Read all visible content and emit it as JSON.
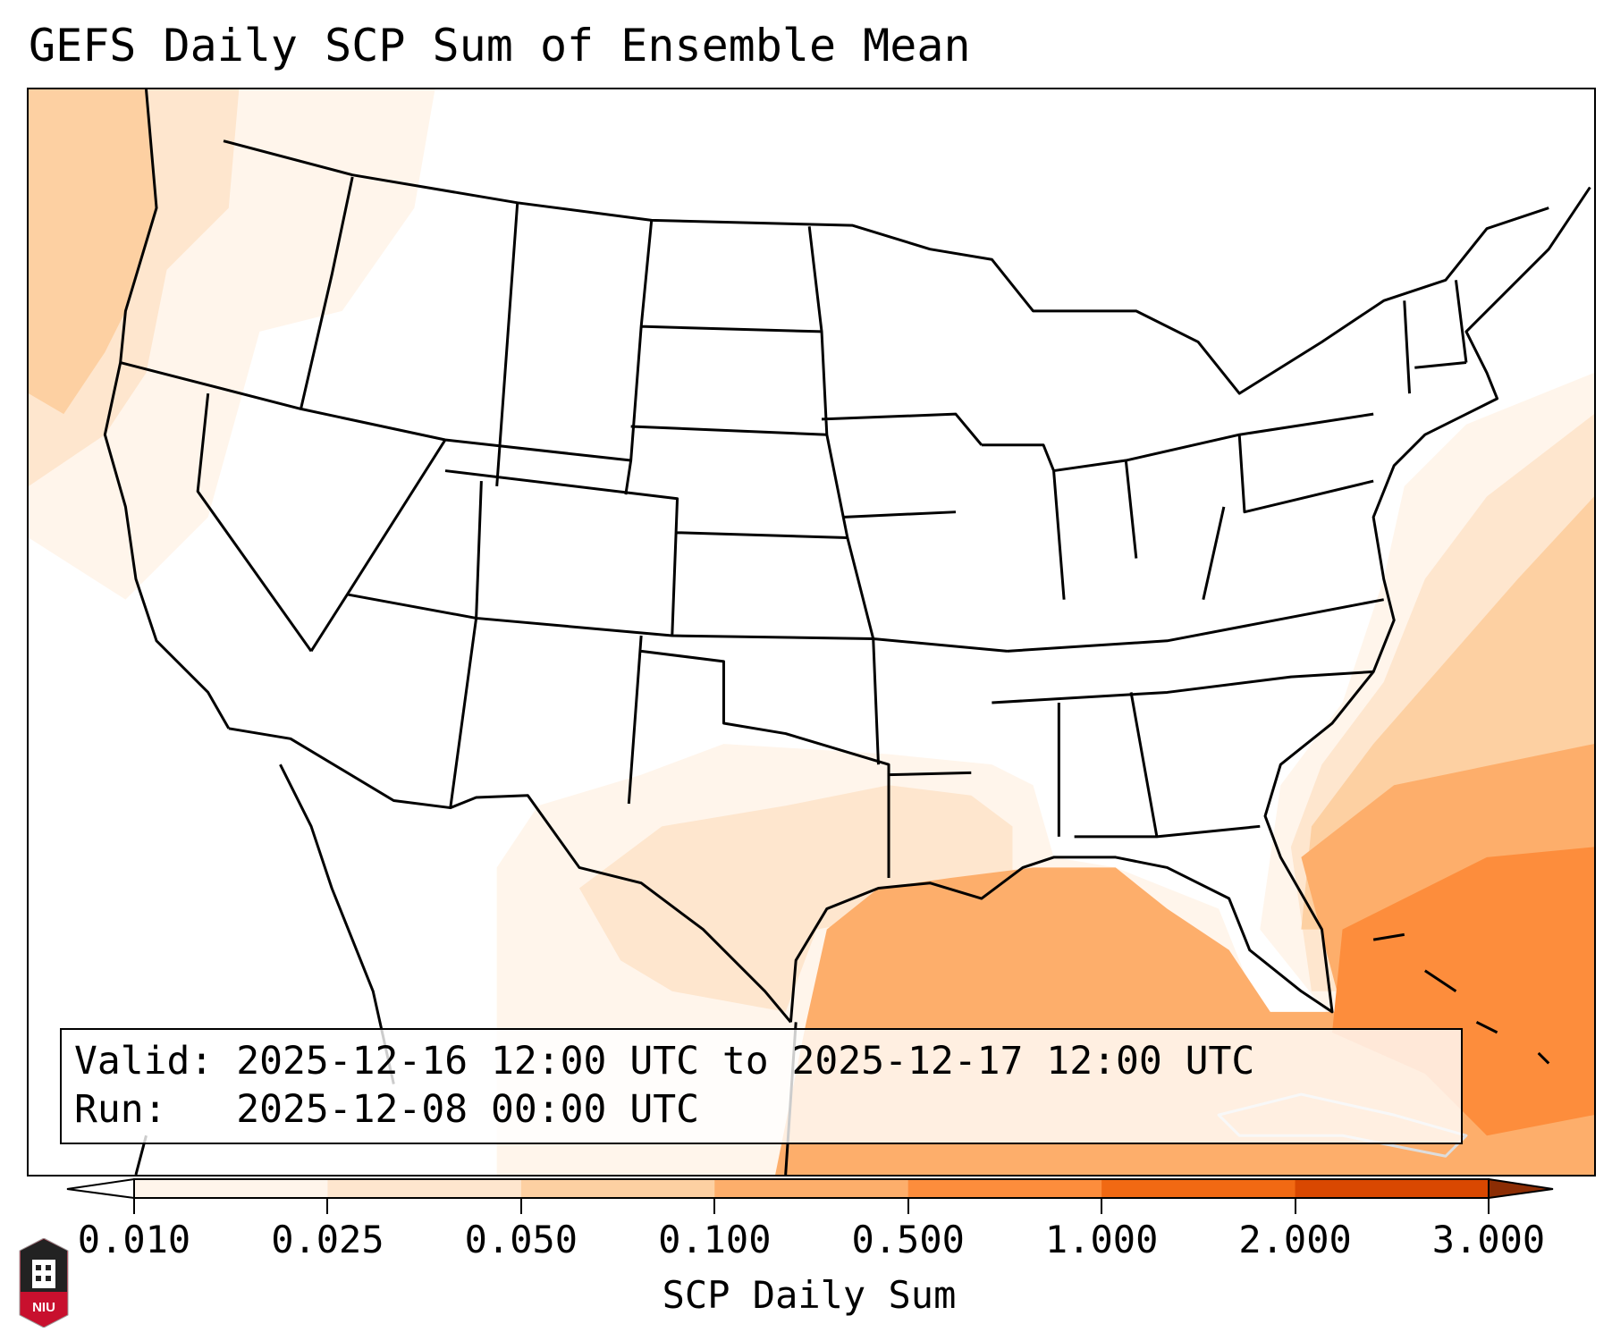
{
  "title": "GEFS Daily SCP Sum of Ensemble Mean",
  "info": {
    "valid": "Valid: 2025-12-16 12:00 UTC to 2025-12-17 12:00 UTC",
    "run": "Run:   2025-12-08 00:00 UTC"
  },
  "colorbar": {
    "label": "SCP Daily Sum",
    "ticks": [
      "0.010",
      "0.025",
      "0.050",
      "0.100",
      "0.500",
      "1.000",
      "2.000",
      "3.000"
    ],
    "colors": [
      "#fff5eb",
      "#fee6ce",
      "#fdd0a2",
      "#fdae6b",
      "#fd8d3c",
      "#f16913",
      "#d94801"
    ],
    "under_color": "#ffffff",
    "over_color": "#8c2d04"
  },
  "logo": {
    "text": "NIU"
  }
}
